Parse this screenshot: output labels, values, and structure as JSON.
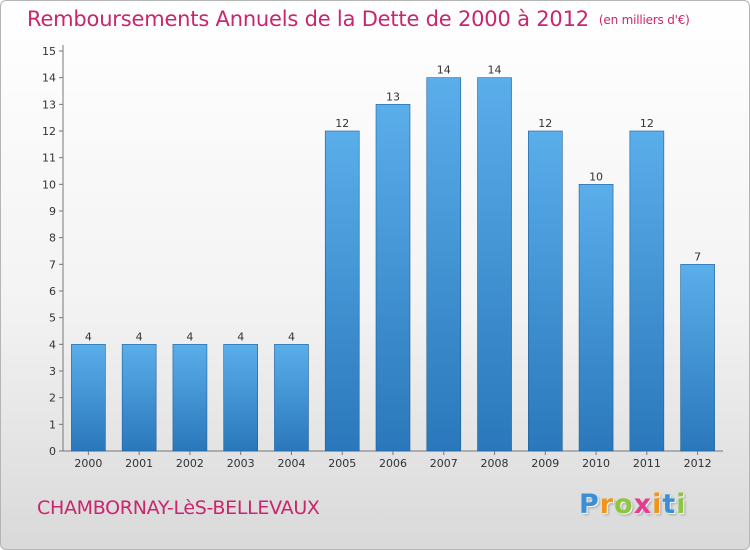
{
  "header": {
    "title": "Remboursements Annuels de la Dette de 2000 à 2012",
    "unit": "(en milliers d'€)"
  },
  "footer": {
    "commune": "CHAMBORNAY-LèS-BELLEVAUX",
    "logo": {
      "letters": [
        "P",
        "r",
        "o",
        "x",
        "i",
        "t",
        "i"
      ],
      "colors": [
        "#3a8fd6",
        "#f29418",
        "#8cc63f",
        "#e63c8d",
        "#f29418",
        "#3a8fd6",
        "#8cc63f"
      ]
    }
  },
  "colors": {
    "title": "#c8266e",
    "bar_light": "#5aaeea",
    "bar_dark": "#2a78bb"
  },
  "chart_data": {
    "type": "bar",
    "categories": [
      "2000",
      "2001",
      "2002",
      "2003",
      "2004",
      "2005",
      "2006",
      "2007",
      "2008",
      "2009",
      "2010",
      "2011",
      "2012"
    ],
    "values": [
      4,
      4,
      4,
      4,
      4,
      12,
      13,
      14,
      14,
      12,
      10,
      12,
      7
    ],
    "data_labels": [
      "4",
      "4",
      "4",
      "4",
      "4",
      "12",
      "13",
      "14",
      "14",
      "12",
      "10",
      "12",
      "7"
    ],
    "yticks": [
      0,
      1,
      2,
      3,
      4,
      5,
      6,
      7,
      8,
      9,
      10,
      11,
      12,
      13,
      14,
      15
    ],
    "ylim": [
      0,
      15
    ],
    "grid": false,
    "legend": "none"
  }
}
